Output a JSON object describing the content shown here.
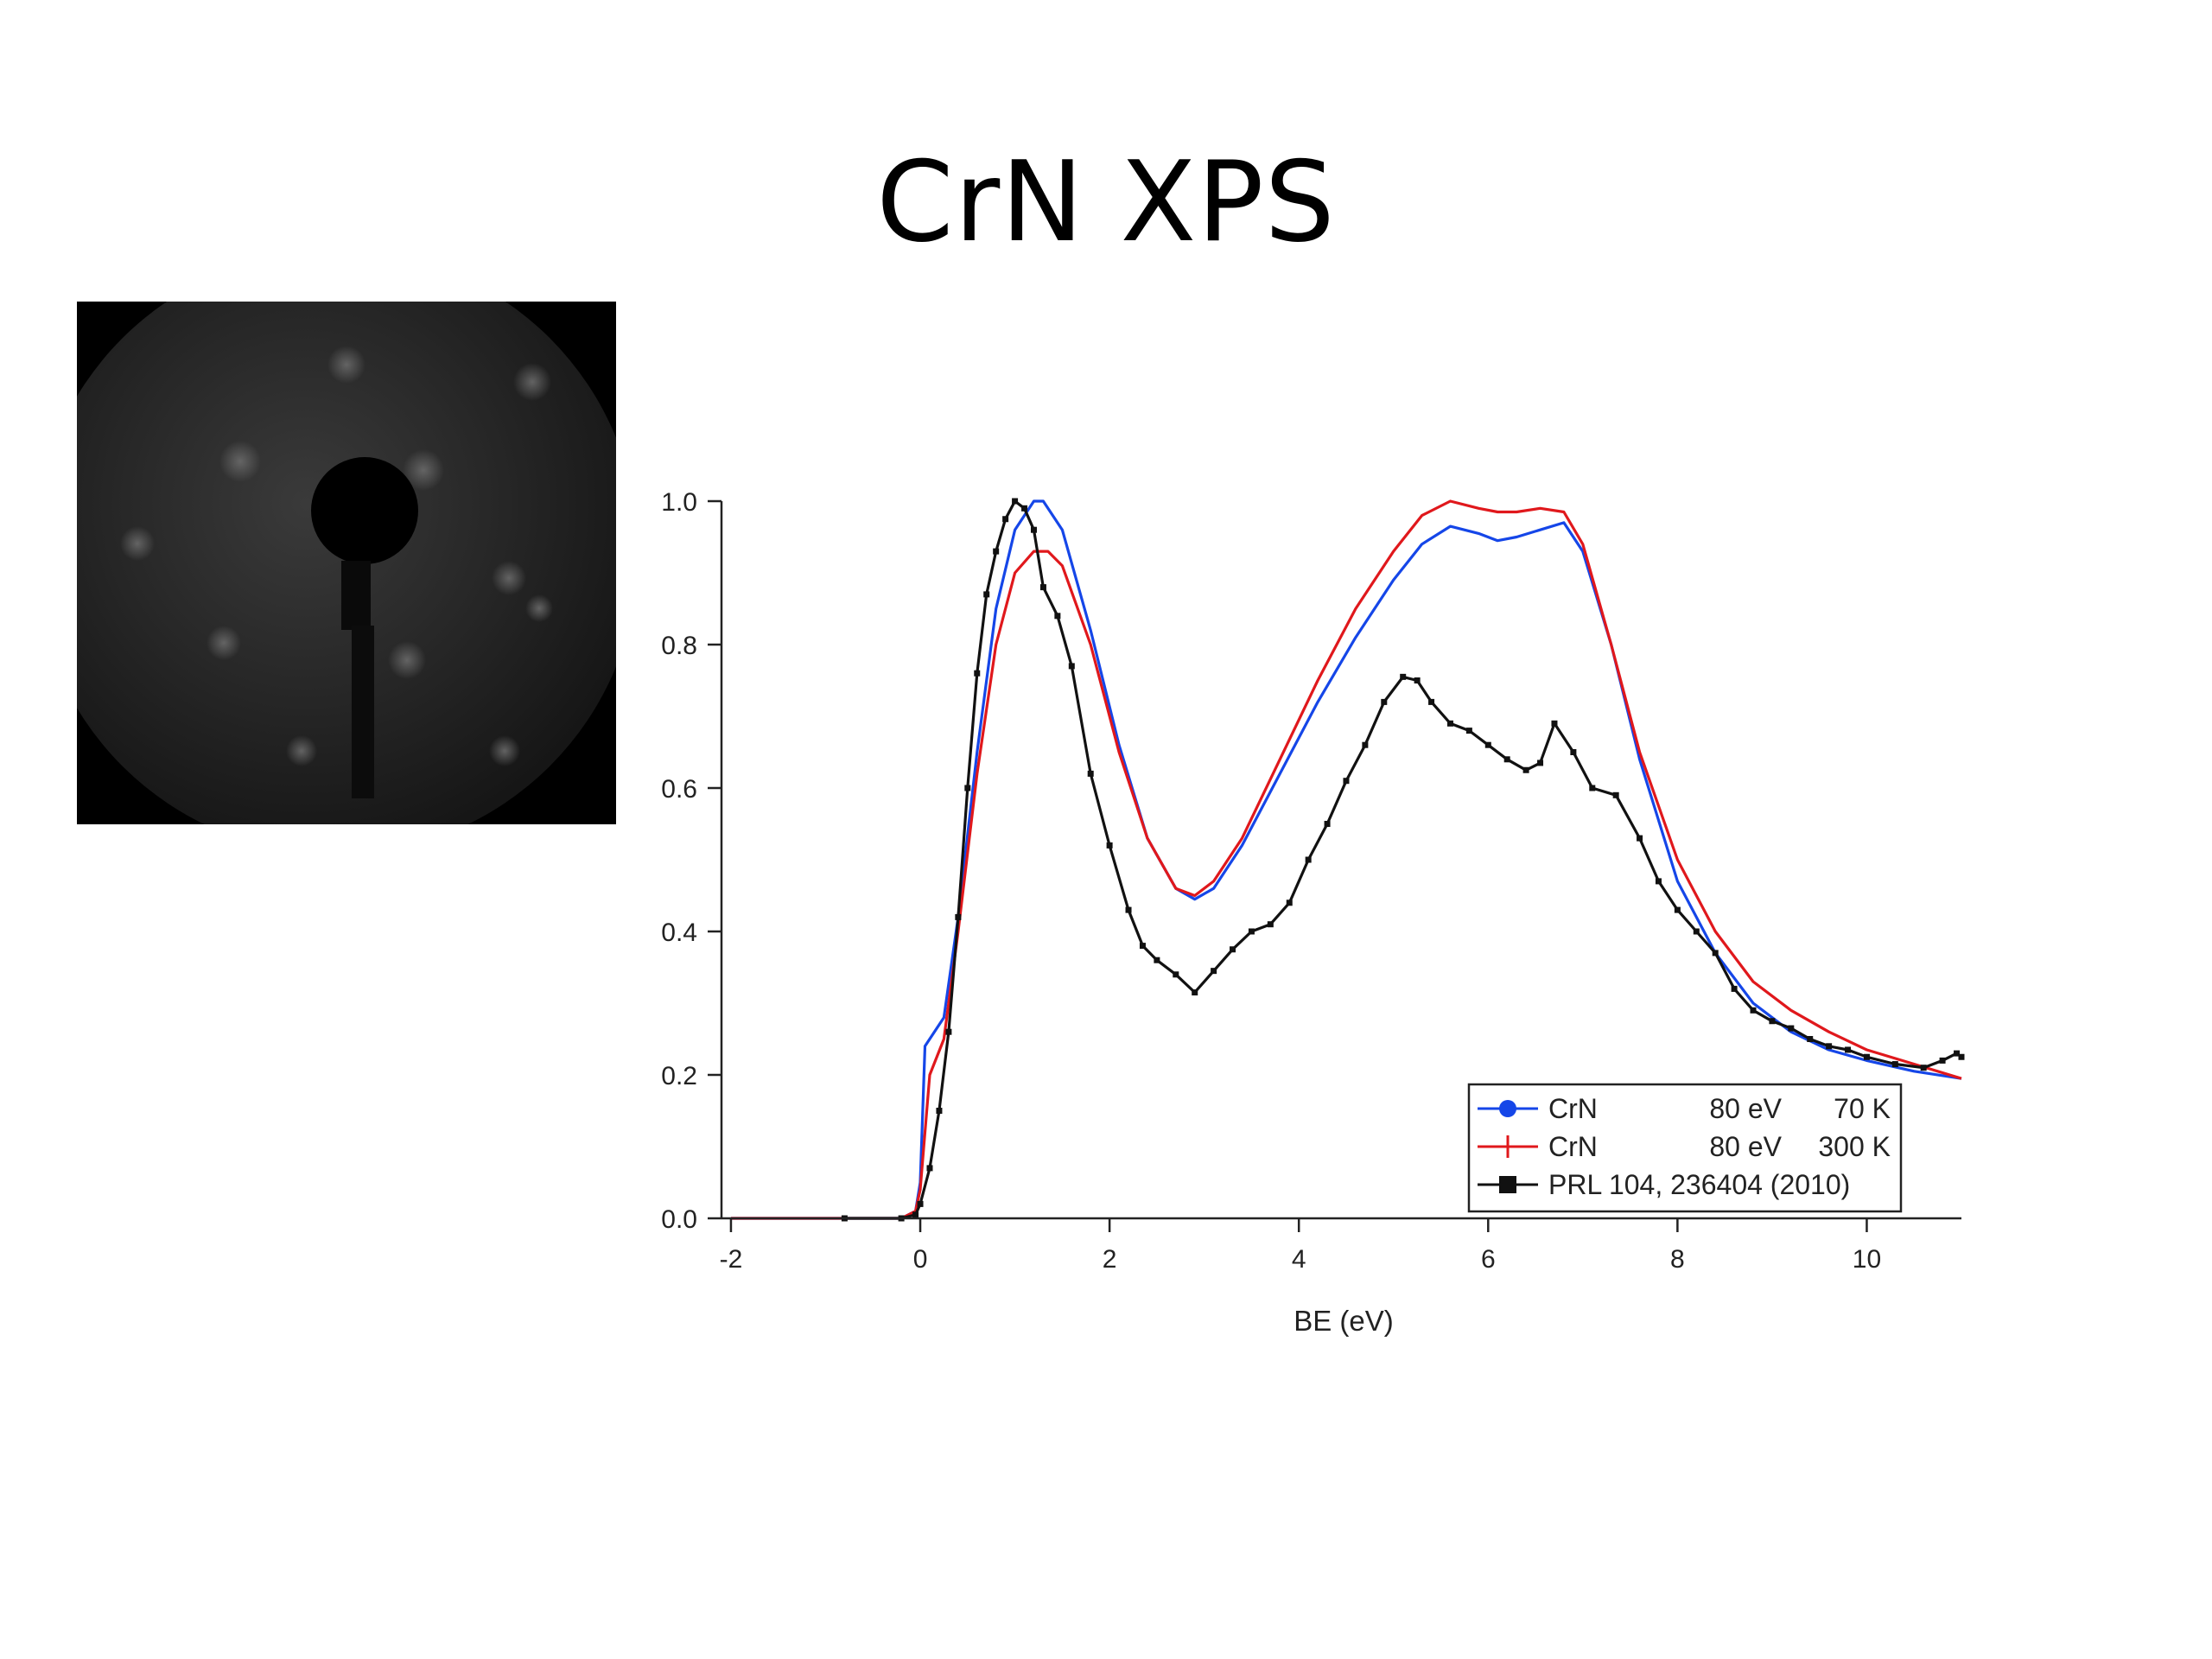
{
  "slide": {
    "title": "CrN XPS"
  },
  "colors": {
    "blue": "#1546e8",
    "red": "#e0181c",
    "black": "#111111"
  },
  "icons": {
    "leed_pattern": "leed-diffraction-pattern-image"
  },
  "chart_data": {
    "type": "line",
    "title": "",
    "xlabel": "BE (eV)",
    "ylabel": "",
    "xlim": [
      -2.1,
      11
    ],
    "ylim": [
      0,
      1.0
    ],
    "grid": false,
    "legend_placement": "bottom-right",
    "x_ticks": [
      -2,
      0,
      2,
      4,
      6,
      8,
      10
    ],
    "y_ticks": [
      0.0,
      0.2,
      0.4,
      0.6,
      0.8,
      1.0
    ],
    "x_tick_labels": [
      "-2",
      "0",
      "2",
      "4",
      "6",
      "8",
      "10"
    ],
    "y_tick_labels": [
      "0.0",
      "0.2",
      "0.4",
      "0.6",
      "0.8",
      "1.0"
    ],
    "legend": [
      {
        "name": "CrN",
        "energy": "80 eV",
        "temp": "70 K",
        "color": "#1546e8",
        "marker": "circle"
      },
      {
        "name": "CrN",
        "energy": "80 eV",
        "temp": "300 K",
        "color": "#e0181c",
        "marker": "plus"
      },
      {
        "name": "PRL 104, 236404 (2010)",
        "energy": "",
        "temp": "",
        "color": "#111111",
        "marker": "square"
      }
    ],
    "series": [
      {
        "label": "CrN 80 eV 70 K",
        "color": "#1546e8",
        "points": [
          [
            -2,
            0
          ],
          [
            -0.2,
            0
          ],
          [
            -0.05,
            0.01
          ],
          [
            0,
            0.05
          ],
          [
            0.05,
            0.24
          ],
          [
            0.25,
            0.28
          ],
          [
            0.4,
            0.42
          ],
          [
            0.6,
            0.65
          ],
          [
            0.8,
            0.85
          ],
          [
            1.0,
            0.96
          ],
          [
            1.2,
            1.0
          ],
          [
            1.3,
            1.0
          ],
          [
            1.5,
            0.96
          ],
          [
            1.8,
            0.82
          ],
          [
            2.1,
            0.66
          ],
          [
            2.4,
            0.53
          ],
          [
            2.7,
            0.46
          ],
          [
            2.9,
            0.445
          ],
          [
            3.1,
            0.46
          ],
          [
            3.4,
            0.52
          ],
          [
            3.8,
            0.62
          ],
          [
            4.2,
            0.72
          ],
          [
            4.6,
            0.81
          ],
          [
            5.0,
            0.89
          ],
          [
            5.3,
            0.94
          ],
          [
            5.6,
            0.965
          ],
          [
            5.9,
            0.955
          ],
          [
            6.1,
            0.945
          ],
          [
            6.3,
            0.95
          ],
          [
            6.55,
            0.96
          ],
          [
            6.8,
            0.97
          ],
          [
            7.0,
            0.93
          ],
          [
            7.3,
            0.8
          ],
          [
            7.6,
            0.64
          ],
          [
            8.0,
            0.47
          ],
          [
            8.4,
            0.37
          ],
          [
            8.8,
            0.3
          ],
          [
            9.2,
            0.26
          ],
          [
            9.6,
            0.235
          ],
          [
            10.0,
            0.22
          ],
          [
            10.5,
            0.205
          ],
          [
            11.0,
            0.195
          ]
        ]
      },
      {
        "label": "CrN 80 eV 300 K",
        "color": "#e0181c",
        "points": [
          [
            -2,
            0
          ],
          [
            -0.2,
            0
          ],
          [
            -0.05,
            0.01
          ],
          [
            0,
            0.04
          ],
          [
            0.1,
            0.2
          ],
          [
            0.25,
            0.25
          ],
          [
            0.4,
            0.4
          ],
          [
            0.6,
            0.62
          ],
          [
            0.8,
            0.8
          ],
          [
            1.0,
            0.9
          ],
          [
            1.2,
            0.93
          ],
          [
            1.35,
            0.93
          ],
          [
            1.5,
            0.91
          ],
          [
            1.8,
            0.8
          ],
          [
            2.1,
            0.65
          ],
          [
            2.4,
            0.53
          ],
          [
            2.7,
            0.46
          ],
          [
            2.9,
            0.45
          ],
          [
            3.1,
            0.47
          ],
          [
            3.4,
            0.53
          ],
          [
            3.8,
            0.64
          ],
          [
            4.2,
            0.75
          ],
          [
            4.6,
            0.85
          ],
          [
            5.0,
            0.93
          ],
          [
            5.3,
            0.98
          ],
          [
            5.6,
            1.0
          ],
          [
            5.9,
            0.99
          ],
          [
            6.1,
            0.985
          ],
          [
            6.3,
            0.985
          ],
          [
            6.55,
            0.99
          ],
          [
            6.8,
            0.985
          ],
          [
            7.0,
            0.94
          ],
          [
            7.3,
            0.8
          ],
          [
            7.6,
            0.65
          ],
          [
            8.0,
            0.5
          ],
          [
            8.4,
            0.4
          ],
          [
            8.8,
            0.33
          ],
          [
            9.2,
            0.29
          ],
          [
            9.6,
            0.26
          ],
          [
            10.0,
            0.235
          ],
          [
            10.5,
            0.215
          ],
          [
            11.0,
            0.195
          ]
        ]
      },
      {
        "label": "PRL 104, 236404 (2010)",
        "color": "#111111",
        "points": [
          [
            -0.8,
            0
          ],
          [
            -0.2,
            0
          ],
          [
            -0.05,
            0.005
          ],
          [
            0,
            0.02
          ],
          [
            0.1,
            0.07
          ],
          [
            0.2,
            0.15
          ],
          [
            0.3,
            0.26
          ],
          [
            0.4,
            0.42
          ],
          [
            0.5,
            0.6
          ],
          [
            0.6,
            0.76
          ],
          [
            0.7,
            0.87
          ],
          [
            0.8,
            0.93
          ],
          [
            0.9,
            0.975
          ],
          [
            1.0,
            1.0
          ],
          [
            1.1,
            0.99
          ],
          [
            1.2,
            0.96
          ],
          [
            1.3,
            0.88
          ],
          [
            1.45,
            0.84
          ],
          [
            1.6,
            0.77
          ],
          [
            1.8,
            0.62
          ],
          [
            2.0,
            0.52
          ],
          [
            2.2,
            0.43
          ],
          [
            2.35,
            0.38
          ],
          [
            2.5,
            0.36
          ],
          [
            2.7,
            0.34
          ],
          [
            2.9,
            0.315
          ],
          [
            3.1,
            0.345
          ],
          [
            3.3,
            0.375
          ],
          [
            3.5,
            0.4
          ],
          [
            3.7,
            0.41
          ],
          [
            3.9,
            0.44
          ],
          [
            4.1,
            0.5
          ],
          [
            4.3,
            0.55
          ],
          [
            4.5,
            0.61
          ],
          [
            4.7,
            0.66
          ],
          [
            4.9,
            0.72
          ],
          [
            5.1,
            0.755
          ],
          [
            5.25,
            0.75
          ],
          [
            5.4,
            0.72
          ],
          [
            5.6,
            0.69
          ],
          [
            5.8,
            0.68
          ],
          [
            6.0,
            0.66
          ],
          [
            6.2,
            0.64
          ],
          [
            6.4,
            0.625
          ],
          [
            6.55,
            0.635
          ],
          [
            6.7,
            0.69
          ],
          [
            6.9,
            0.65
          ],
          [
            7.1,
            0.6
          ],
          [
            7.35,
            0.59
          ],
          [
            7.6,
            0.53
          ],
          [
            7.8,
            0.47
          ],
          [
            8.0,
            0.43
          ],
          [
            8.2,
            0.4
          ],
          [
            8.4,
            0.37
          ],
          [
            8.6,
            0.32
          ],
          [
            8.8,
            0.29
          ],
          [
            9.0,
            0.275
          ],
          [
            9.2,
            0.265
          ],
          [
            9.4,
            0.25
          ],
          [
            9.6,
            0.24
          ],
          [
            9.8,
            0.235
          ],
          [
            10.0,
            0.225
          ],
          [
            10.3,
            0.215
          ],
          [
            10.6,
            0.21
          ],
          [
            10.8,
            0.22
          ],
          [
            10.95,
            0.23
          ],
          [
            11.0,
            0.225
          ]
        ]
      }
    ]
  }
}
